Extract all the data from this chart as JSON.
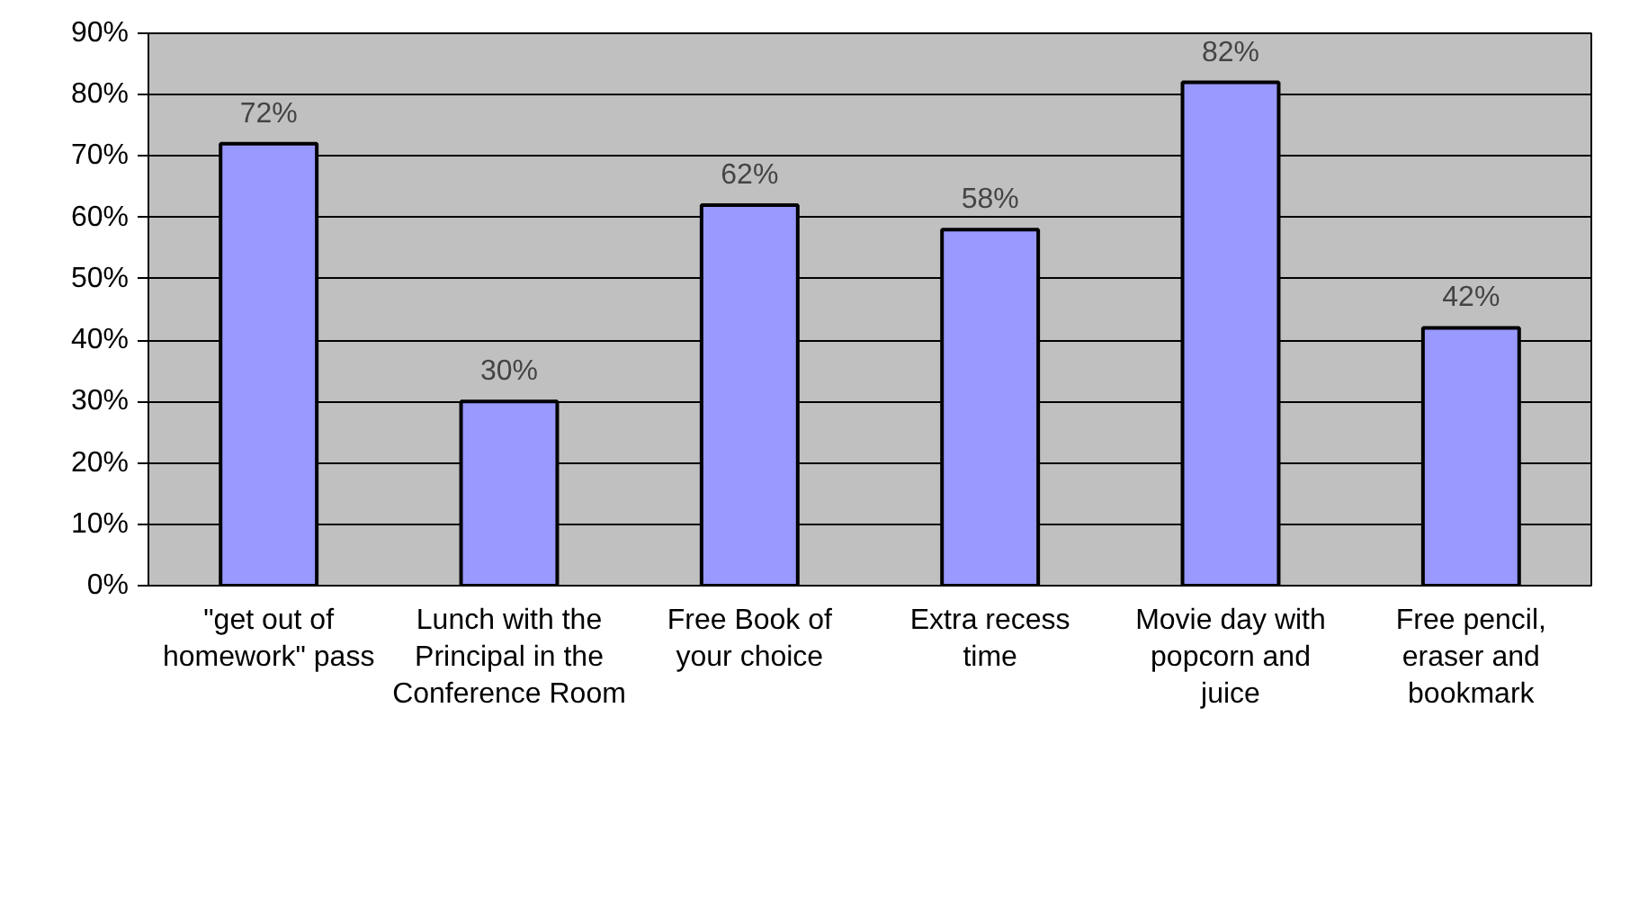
{
  "chart_data": {
    "type": "bar",
    "categories": [
      "\"get out of homework\" pass",
      "Lunch with the Principal in the Conference Room",
      "Free Book of your choice",
      "Extra recess time",
      "Movie day with popcorn and juice",
      "Free pencil, eraser and bookmark"
    ],
    "values": [
      72,
      30,
      62,
      58,
      82,
      42
    ],
    "value_labels": [
      "72%",
      "30%",
      "62%",
      "58%",
      "82%",
      "42%"
    ],
    "color": "#9999ff",
    "ylim": [
      0,
      90
    ],
    "yticks": [
      {
        "value": 0,
        "label": "0%"
      },
      {
        "value": 10,
        "label": "10%"
      },
      {
        "value": 20,
        "label": "20%"
      },
      {
        "value": 30,
        "label": "30%"
      },
      {
        "value": 40,
        "label": "40%"
      },
      {
        "value": 50,
        "label": "50%"
      },
      {
        "value": 60,
        "label": "60%"
      },
      {
        "value": 70,
        "label": "70%"
      },
      {
        "value": 80,
        "label": "80%"
      },
      {
        "value": 90,
        "label": "90%"
      }
    ],
    "grid": "y"
  }
}
